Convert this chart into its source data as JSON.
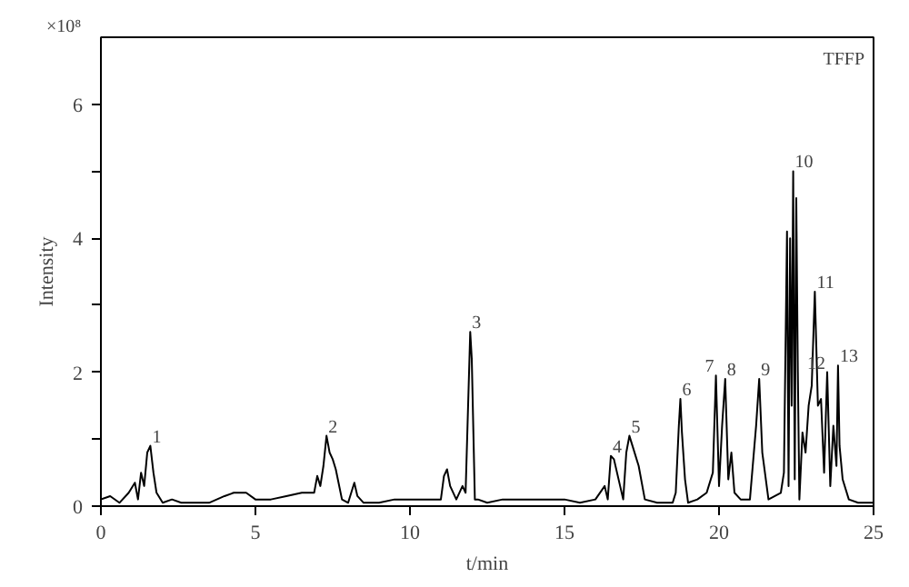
{
  "chart_data": {
    "type": "line",
    "xlabel": "t/min",
    "ylabel": "Intensity",
    "x": [
      0,
      0.3,
      0.6,
      0.9,
      1.1,
      1.2,
      1.3,
      1.4,
      1.5,
      1.6,
      1.7,
      1.8,
      2.0,
      2.3,
      2.6,
      3.0,
      3.5,
      4.0,
      4.3,
      4.7,
      5.0,
      5.5,
      6.0,
      6.5,
      6.9,
      7.0,
      7.1,
      7.2,
      7.3,
      7.4,
      7.5,
      7.6,
      7.8,
      8.0,
      8.2,
      8.3,
      8.5,
      9.0,
      9.5,
      10.0,
      10.5,
      11.0,
      11.1,
      11.2,
      11.3,
      11.5,
      11.7,
      11.8,
      11.9,
      11.95,
      12.0,
      12.1,
      12.2,
      12.5,
      13.0,
      13.5,
      14.0,
      14.5,
      15.0,
      15.5,
      16.0,
      16.3,
      16.4,
      16.5,
      16.6,
      16.8,
      16.9,
      17.0,
      17.1,
      17.2,
      17.4,
      17.6,
      18.0,
      18.5,
      18.6,
      18.7,
      18.75,
      18.8,
      18.9,
      19.0,
      19.3,
      19.6,
      19.8,
      19.9,
      20.0,
      20.1,
      20.2,
      20.3,
      20.4,
      20.5,
      20.7,
      21.0,
      21.2,
      21.3,
      21.4,
      21.6,
      22.0,
      22.1,
      22.2,
      22.25,
      22.3,
      22.35,
      22.4,
      22.45,
      22.5,
      22.55,
      22.6,
      22.7,
      22.8,
      22.9,
      23.0,
      23.1,
      23.2,
      23.3,
      23.4,
      23.5,
      23.6,
      23.7,
      23.8,
      23.85,
      23.9,
      24.0,
      24.2,
      24.5,
      25.0
    ],
    "series": [
      {
        "color": "#000000",
        "values": [
          0.1,
          0.15,
          0.05,
          0.2,
          0.35,
          0.1,
          0.5,
          0.3,
          0.8,
          0.9,
          0.5,
          0.2,
          0.05,
          0.1,
          0.05,
          0.05,
          0.05,
          0.15,
          0.2,
          0.2,
          0.1,
          0.1,
          0.15,
          0.2,
          0.2,
          0.45,
          0.3,
          0.6,
          1.05,
          0.8,
          0.7,
          0.55,
          0.1,
          0.05,
          0.35,
          0.15,
          0.05,
          0.05,
          0.1,
          0.1,
          0.1,
          0.1,
          0.45,
          0.55,
          0.3,
          0.1,
          0.3,
          0.2,
          1.8,
          2.6,
          2.2,
          0.1,
          0.1,
          0.05,
          0.1,
          0.1,
          0.1,
          0.1,
          0.1,
          0.05,
          0.1,
          0.3,
          0.1,
          0.75,
          0.7,
          0.3,
          0.1,
          0.8,
          1.05,
          0.9,
          0.6,
          0.1,
          0.05,
          0.05,
          0.2,
          1.2,
          1.6,
          1.1,
          0.4,
          0.05,
          0.1,
          0.2,
          0.5,
          1.95,
          0.3,
          1.2,
          1.9,
          0.4,
          0.8,
          0.2,
          0.1,
          0.1,
          1.2,
          1.9,
          0.8,
          0.1,
          0.2,
          0.5,
          4.1,
          0.3,
          4.0,
          1.5,
          5.0,
          0.4,
          4.6,
          2.0,
          0.1,
          1.1,
          0.8,
          1.5,
          1.8,
          3.2,
          1.5,
          1.6,
          0.5,
          2.0,
          0.3,
          1.2,
          0.6,
          2.1,
          0.9,
          0.4,
          0.1,
          0.05,
          0.05
        ]
      }
    ],
    "xlim": [
      0,
      25
    ],
    "ylim": [
      0,
      7
    ],
    "xticks": [
      0,
      5,
      10,
      15,
      20,
      25
    ],
    "yticks": [
      0,
      {
        "value": 1,
        "label": null
      },
      2,
      {
        "value": 3,
        "label": null
      },
      4,
      {
        "value": 5,
        "label": null
      },
      6
    ],
    "grid": false,
    "marker": "none",
    "line_style": "solid",
    "annotations": [
      "×10⁸",
      "TFFP",
      {
        "text": "1",
        "x": 1.6,
        "y": 0.9
      },
      {
        "text": "2",
        "x": 7.3,
        "y": 1.05
      },
      {
        "text": "3",
        "x": 11.95,
        "y": 2.6
      },
      {
        "text": "4",
        "x": 16.5,
        "y": 0.75
      },
      {
        "text": "5",
        "x": 17.1,
        "y": 1.05
      },
      {
        "text": "6",
        "x": 18.75,
        "y": 1.6
      },
      {
        "text": "7",
        "x": 19.9,
        "y": 1.95
      },
      {
        "text": "8",
        "x": 20.2,
        "y": 1.9
      },
      {
        "text": "9",
        "x": 21.3,
        "y": 1.9
      },
      {
        "text": "10",
        "x": 22.4,
        "y": 5.0
      },
      {
        "text": "11",
        "x": 23.1,
        "y": 3.2
      },
      {
        "text": "12",
        "x": 23.5,
        "y": 2.0
      },
      {
        "text": "13",
        "x": 23.85,
        "y": 2.1
      }
    ]
  }
}
